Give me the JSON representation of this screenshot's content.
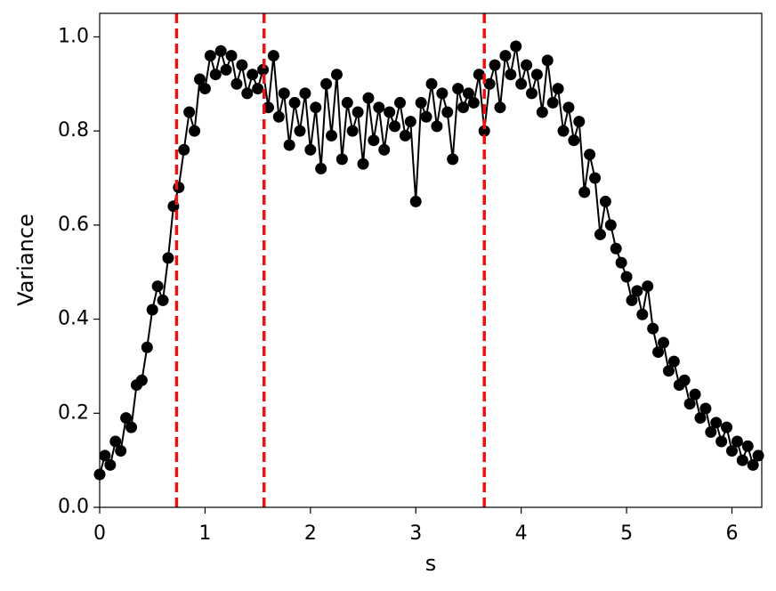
{
  "chart_data": {
    "type": "line",
    "xlabel": "s",
    "ylabel": "Variance",
    "x": [
      0.0,
      0.05,
      0.1,
      0.15,
      0.2,
      0.25,
      0.3,
      0.35,
      0.4,
      0.45,
      0.5,
      0.55,
      0.6,
      0.65,
      0.7,
      0.75,
      0.8,
      0.85,
      0.9,
      0.95,
      1.0,
      1.05,
      1.1,
      1.15,
      1.2,
      1.25,
      1.3,
      1.35,
      1.4,
      1.45,
      1.5,
      1.55,
      1.6,
      1.65,
      1.7,
      1.75,
      1.8,
      1.85,
      1.9,
      1.95,
      2.0,
      2.05,
      2.1,
      2.15,
      2.2,
      2.25,
      2.3,
      2.35,
      2.4,
      2.45,
      2.5,
      2.55,
      2.6,
      2.65,
      2.7,
      2.75,
      2.8,
      2.85,
      2.9,
      2.95,
      3.0,
      3.05,
      3.1,
      3.15,
      3.2,
      3.25,
      3.3,
      3.35,
      3.4,
      3.45,
      3.5,
      3.55,
      3.6,
      3.65,
      3.7,
      3.75,
      3.8,
      3.85,
      3.9,
      3.95,
      4.0,
      4.05,
      4.1,
      4.15,
      4.2,
      4.25,
      4.3,
      4.35,
      4.4,
      4.45,
      4.5,
      4.55,
      4.6,
      4.65,
      4.7,
      4.75,
      4.8,
      4.85,
      4.9,
      4.95,
      5.0,
      5.05,
      5.1,
      5.15,
      5.2,
      5.25,
      5.3,
      5.35,
      5.4,
      5.45,
      5.5,
      5.55,
      5.6,
      5.65,
      5.7,
      5.75,
      5.8,
      5.85,
      5.9,
      5.95,
      6.0,
      6.05,
      6.1,
      6.15,
      6.2,
      6.25
    ],
    "series": [
      {
        "color": "#000000",
        "values": [
          0.07,
          0.11,
          0.09,
          0.14,
          0.12,
          0.19,
          0.17,
          0.26,
          0.27,
          0.34,
          0.42,
          0.47,
          0.44,
          0.53,
          0.64,
          0.68,
          0.76,
          0.84,
          0.8,
          0.91,
          0.89,
          0.96,
          0.92,
          0.97,
          0.93,
          0.96,
          0.9,
          0.94,
          0.88,
          0.92,
          0.89,
          0.93,
          0.85,
          0.96,
          0.83,
          0.88,
          0.77,
          0.86,
          0.8,
          0.88,
          0.76,
          0.85,
          0.72,
          0.9,
          0.79,
          0.92,
          0.74,
          0.86,
          0.8,
          0.84,
          0.73,
          0.87,
          0.78,
          0.85,
          0.76,
          0.84,
          0.81,
          0.86,
          0.79,
          0.82,
          0.65,
          0.86,
          0.83,
          0.9,
          0.81,
          0.88,
          0.84,
          0.74,
          0.89,
          0.85,
          0.88,
          0.86,
          0.92,
          0.8,
          0.9,
          0.94,
          0.85,
          0.96,
          0.92,
          0.98,
          0.9,
          0.94,
          0.88,
          0.92,
          0.84,
          0.95,
          0.86,
          0.89,
          0.8,
          0.85,
          0.78,
          0.82,
          0.67,
          0.75,
          0.7,
          0.58,
          0.65,
          0.6,
          0.55,
          0.52,
          0.49,
          0.44,
          0.46,
          0.41,
          0.47,
          0.38,
          0.33,
          0.35,
          0.29,
          0.31,
          0.26,
          0.27,
          0.22,
          0.24,
          0.19,
          0.21,
          0.16,
          0.18,
          0.14,
          0.17,
          0.12,
          0.14,
          0.1,
          0.13,
          0.09,
          0.11
        ]
      }
    ],
    "vlines": [
      0.73,
      1.56,
      3.65
    ],
    "vline_color": "#ee1111",
    "xlim": [
      0,
      6.283
    ],
    "ylim": [
      0,
      1.05
    ],
    "xticks": [
      0,
      1,
      2,
      3,
      4,
      5,
      6
    ],
    "yticks": [
      {
        "value": 0,
        "label": "0.0"
      },
      {
        "value": 0.2,
        "label": "0.2"
      },
      {
        "value": 0.4,
        "label": "0.4"
      },
      {
        "value": 0.6,
        "label": "0.6"
      },
      {
        "value": 0.8,
        "label": "0.8"
      },
      {
        "value": 1,
        "label": "1.0"
      }
    ],
    "grid": false
  }
}
